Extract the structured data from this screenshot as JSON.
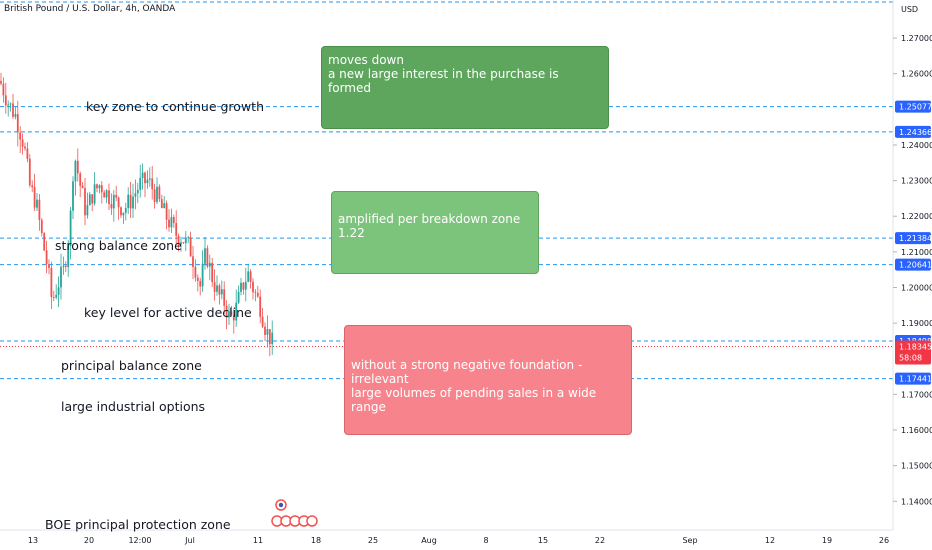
{
  "chart_title": "British Pound / U.S. Dollar, 4h, OANDA",
  "currency_label": "USD",
  "annotations": [
    "key zone to continue growth",
    "strong balance zone",
    "key level for active decline",
    "principal balance zone",
    "large industrial options",
    "BOE principal protection zone"
  ],
  "boxes": {
    "top": [
      "moves down",
      "a new large interest in the purchase is formed"
    ],
    "middle": [
      "amplified per breakdown zone 1.22"
    ],
    "bottom": [
      "without a strong negative foundation - irrelevant",
      "large volumes of pending sales in a wide range"
    ]
  },
  "colors": {
    "up": "#26a69a",
    "down": "#ef5350",
    "level_line": "#2196f3",
    "price_tag_blue": "#2962ff",
    "price_tag_red": "#f23645"
  },
  "chart_data": {
    "type": "candlestick",
    "symbol": "British Pound / U.S. Dollar",
    "timeframe": "4h",
    "source": "OANDA",
    "y_axis_ticks": [
      "1.27000",
      "1.26000",
      "1.24000",
      "1.23000",
      "1.22000",
      "1.21000",
      "1.20000",
      "1.19000",
      "1.17000",
      "1.16000",
      "1.15000",
      "1.14000"
    ],
    "x_axis_ticks": [
      "13",
      "20",
      "12:00",
      "Jul",
      "11",
      "18",
      "25",
      "Aug",
      "8",
      "15",
      "22",
      "Sep",
      "12",
      "19",
      "26"
    ],
    "ylim": [
      1.1325,
      1.279
    ],
    "levels": [
      {
        "value": 1.25077,
        "label": "1.25077"
      },
      {
        "value": 1.24366,
        "label": "1.24366"
      },
      {
        "value": 1.21384,
        "label": "1.21384"
      },
      {
        "value": 1.20641,
        "label": "1.20641"
      },
      {
        "value": 1.18498,
        "label": "1.18498"
      },
      {
        "value": 1.17441,
        "label": "1.17441"
      }
    ],
    "current_price": {
      "value": 1.18345,
      "label": "1.18345",
      "countdown": "58:08"
    },
    "ohlc_anchors": [
      [
        0,
        1.258
      ],
      [
        8,
        1.252
      ],
      [
        16,
        1.248
      ],
      [
        24,
        1.24
      ],
      [
        30,
        1.228
      ],
      [
        36,
        1.224
      ],
      [
        42,
        1.214
      ],
      [
        48,
        1.205
      ],
      [
        52,
        1.196
      ],
      [
        58,
        1.201
      ],
      [
        64,
        1.205
      ],
      [
        70,
        1.217
      ],
      [
        74,
        1.238
      ],
      [
        80,
        1.229
      ],
      [
        86,
        1.221
      ],
      [
        92,
        1.226
      ],
      [
        100,
        1.229
      ],
      [
        108,
        1.226
      ],
      [
        116,
        1.224
      ],
      [
        124,
        1.222
      ],
      [
        132,
        1.225
      ],
      [
        140,
        1.229
      ],
      [
        148,
        1.23
      ],
      [
        156,
        1.226
      ],
      [
        162,
        1.222
      ],
      [
        168,
        1.219
      ],
      [
        176,
        1.215
      ],
      [
        182,
        1.214
      ],
      [
        190,
        1.211
      ],
      [
        196,
        1.205
      ],
      [
        200,
        1.2
      ],
      [
        206,
        1.21
      ],
      [
        212,
        1.203
      ],
      [
        218,
        1.198
      ],
      [
        224,
        1.196
      ],
      [
        230,
        1.191
      ],
      [
        236,
        1.194
      ],
      [
        242,
        1.2
      ],
      [
        248,
        1.204
      ],
      [
        254,
        1.199
      ],
      [
        260,
        1.195
      ],
      [
        266,
        1.188
      ],
      [
        270,
        1.186
      ],
      [
        274,
        1.183
      ]
    ]
  }
}
